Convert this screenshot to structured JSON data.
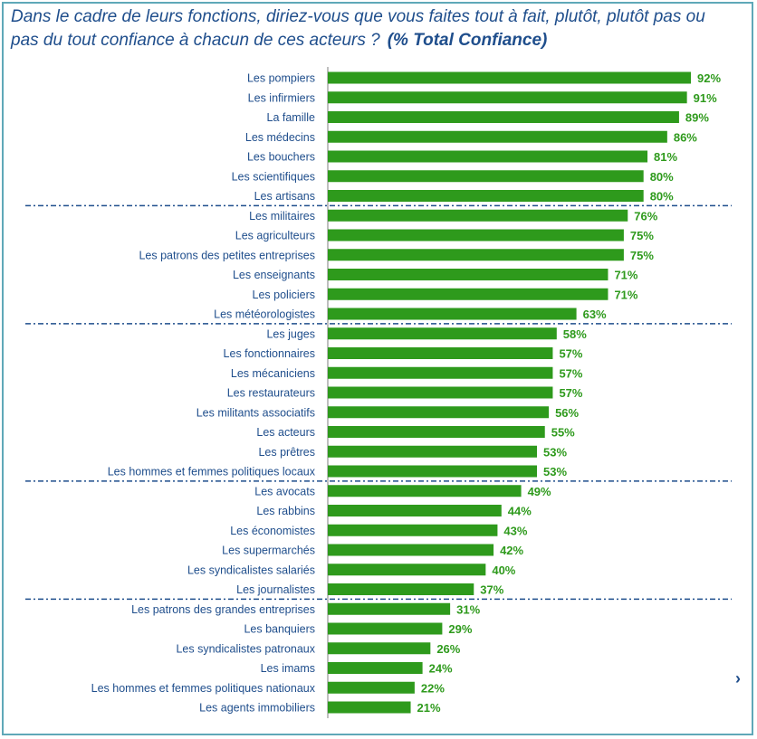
{
  "title_main": "Dans le cadre de leurs fonctions, diriez-vous que vous faites tout à fait, plutôt, plutôt pas ou pas du tout confiance à chacun de ces acteurs ?",
  "title_tag": "(% Total Confiance)",
  "nav_glyph": "›",
  "colors": {
    "bar": "#2e9a1c",
    "label": "#1f4e8c",
    "value": "#2e9a1c",
    "separator": "#1f4e8c"
  },
  "chart_data": {
    "type": "bar",
    "orientation": "horizontal",
    "xlim": [
      0,
      100
    ],
    "group_breaks_after": [
      6,
      12,
      20,
      26
    ],
    "categories": [
      "Les pompiers",
      "Les infirmiers",
      "La famille",
      "Les médecins",
      "Les bouchers",
      "Les scientifiques",
      "Les artisans",
      "Les militaires",
      "Les agriculteurs",
      "Les patrons des petites entreprises",
      "Les enseignants",
      "Les policiers",
      "Les météorologistes",
      "Les juges",
      "Les fonctionnaires",
      "Les mécaniciens",
      "Les restaurateurs",
      "Les militants associatifs",
      "Les acteurs",
      "Les prêtres",
      "Les hommes et femmes politiques locaux",
      "Les avocats",
      "Les rabbins",
      "Les économistes",
      "Les supermarchés",
      "Les syndicalistes salariés",
      "Les journalistes",
      "Les patrons des grandes entreprises",
      "Les banquiers",
      "Les syndicalistes patronaux",
      "Les imams",
      "Les hommes et femmes politiques nationaux",
      "Les agents immobiliers"
    ],
    "values": [
      92,
      91,
      89,
      86,
      81,
      80,
      80,
      76,
      75,
      75,
      71,
      71,
      63,
      58,
      57,
      57,
      57,
      56,
      55,
      53,
      53,
      49,
      44,
      43,
      42,
      40,
      37,
      31,
      29,
      26,
      24,
      22,
      21
    ],
    "value_labels": [
      "92%",
      "91%",
      "89%",
      "86%",
      "81%",
      "80%",
      "80%",
      "76%",
      "75%",
      "75%",
      "71%",
      "71%",
      "63%",
      "58%",
      "57%",
      "57%",
      "57%",
      "56%",
      "55%",
      "53%",
      "53%",
      "49%",
      "44%",
      "43%",
      "42%",
      "40%",
      "37%",
      "31%",
      "29%",
      "26%",
      "24%",
      "22%",
      "21%"
    ]
  }
}
